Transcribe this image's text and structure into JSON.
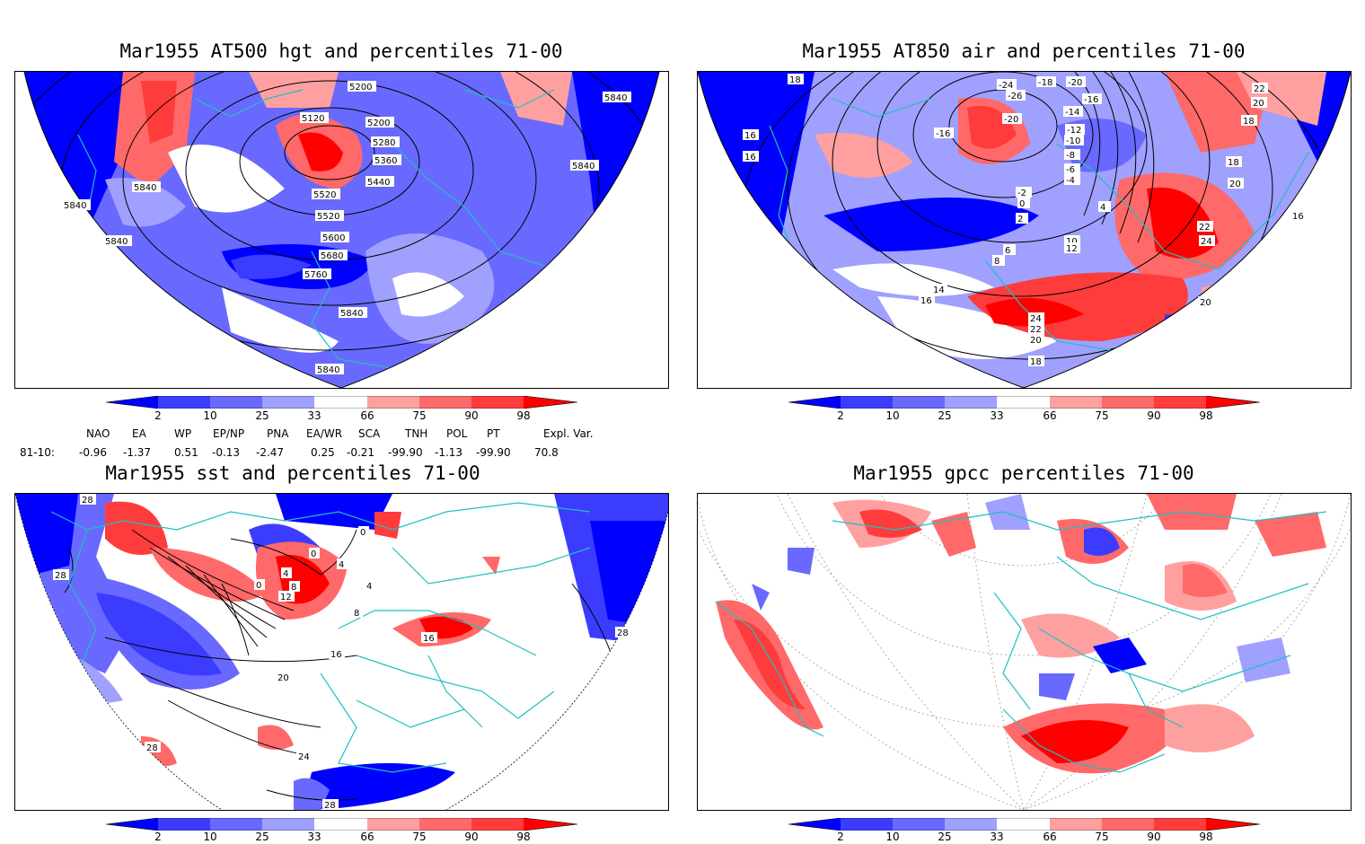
{
  "panels": [
    {
      "title": "Mar1955 AT500 hgt and percentiles 71-00",
      "contour_labels": [
        "5120",
        "5200",
        "5200",
        "5280",
        "5360",
        "5440",
        "5520",
        "5520",
        "5600",
        "5680",
        "5760",
        "5840",
        "5840",
        "5840",
        "5840",
        "5840",
        "5840",
        "5840"
      ]
    },
    {
      "title": "Mar1955 AT850 air and percentiles 71-00",
      "contour_labels": [
        "18",
        "-24",
        "-26",
        "-20",
        "-18",
        "-20",
        "-16",
        "-16",
        "-14",
        "-12",
        "-10",
        "-8",
        "-6",
        "-4",
        "-2",
        "0",
        "2",
        "4",
        "6",
        "8",
        "10",
        "12",
        "14",
        "16",
        "16",
        "16",
        "16",
        "18",
        "18",
        "20",
        "20",
        "20",
        "20",
        "22",
        "22",
        "22",
        "24",
        "24",
        "18"
      ]
    },
    {
      "title": "Mar1955 sst and percentiles 71-00",
      "contour_labels": [
        "28",
        "28",
        "0",
        "0",
        "0",
        "4",
        "4",
        "8",
        "12",
        "4",
        "8",
        "16",
        "16",
        "20",
        "24",
        "28",
        "28",
        "28"
      ]
    },
    {
      "title": "Mar1955 gpcc percentiles 71-00",
      "contour_labels": []
    }
  ],
  "colorbar": {
    "labels": [
      "2",
      "10",
      "25",
      "33",
      "66",
      "75",
      "90",
      "98"
    ],
    "colors": [
      "#0000ff",
      "#3c3cff",
      "#6969ff",
      "#a0a0ff",
      "#ffffff",
      "#ffa0a0",
      "#ff6969",
      "#ff3c3c",
      "#ff0000"
    ]
  },
  "indices": {
    "headers": [
      "NAO",
      "EA",
      "WP",
      "EP/NP",
      "PNA",
      "EA/WR",
      "SCA",
      "TNH",
      "POL",
      "PT",
      "Expl. Var."
    ],
    "row_label": "81-10:",
    "values": [
      "-0.96",
      "-1.37",
      "0.51",
      "-0.13",
      "-2.47",
      "0.25",
      "-0.21",
      "-99.90",
      "-1.13",
      "-99.90",
      "70.8"
    ]
  }
}
